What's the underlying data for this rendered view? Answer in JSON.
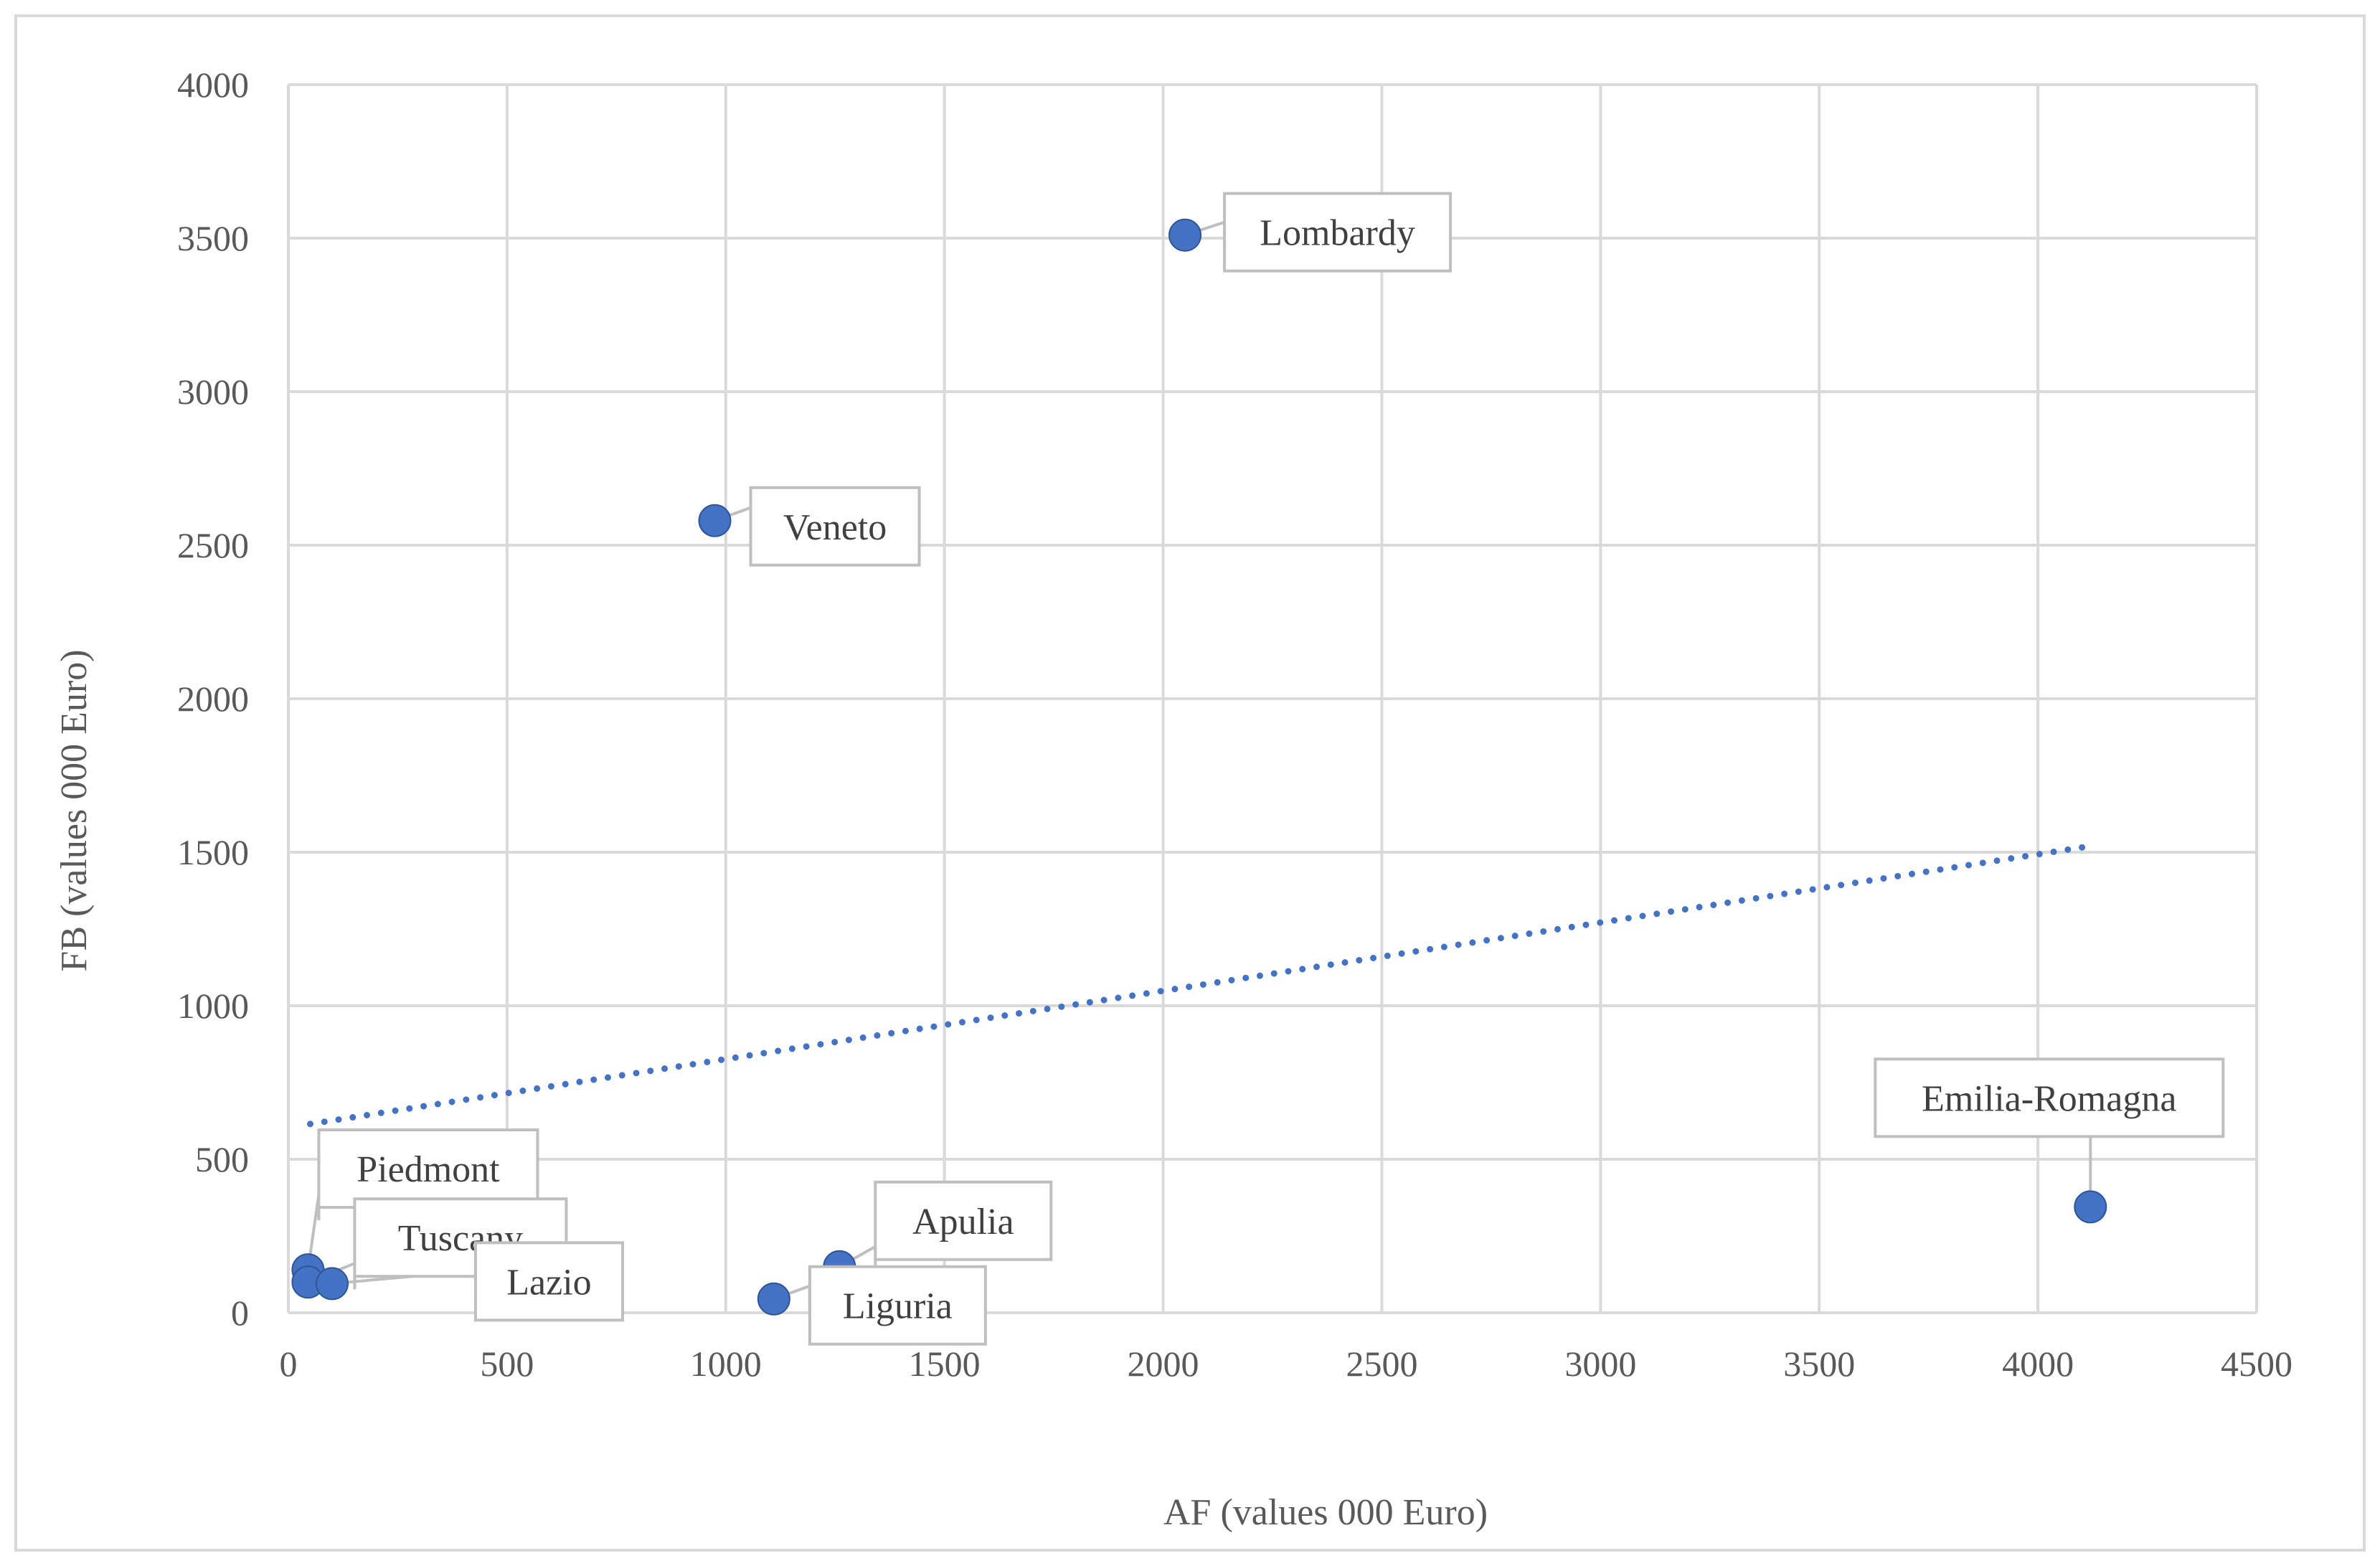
{
  "chart_data": {
    "type": "scatter",
    "title": "",
    "xlabel": "AF (values 000 Euro)",
    "ylabel": "FB (values 000 Euro)",
    "xlim": [
      0,
      4500
    ],
    "ylim": [
      0,
      4000
    ],
    "x_ticks": [
      "0",
      "500",
      "1000",
      "1500",
      "2000",
      "2500",
      "3000",
      "3500",
      "4000",
      "4500"
    ],
    "y_ticks": [
      "0",
      "500",
      "1000",
      "1500",
      "2000",
      "2500",
      "3000",
      "3500",
      "4000"
    ],
    "grid": true,
    "legend": "none",
    "marker_color": "#4472c4",
    "trendline": {
      "type": "linear",
      "style": "dotted",
      "color": "#4472c4",
      "x_range": [
        50,
        4120
      ],
      "y_at_start": 615,
      "y_at_end": 1520
    },
    "points": [
      {
        "label": "Lombardy",
        "x": 2050,
        "y": 3510
      },
      {
        "label": "Veneto",
        "x": 975,
        "y": 2580
      },
      {
        "label": "Emilia-Romagna",
        "x": 4120,
        "y": 345
      },
      {
        "label": "Piedmont",
        "x": 45,
        "y": 140
      },
      {
        "label": "Tuscany",
        "x": 45,
        "y": 100
      },
      {
        "label": "Lazio",
        "x": 100,
        "y": 95
      },
      {
        "label": "Apulia",
        "x": 1260,
        "y": 150
      },
      {
        "label": "Liguria",
        "x": 1110,
        "y": 45
      }
    ]
  }
}
